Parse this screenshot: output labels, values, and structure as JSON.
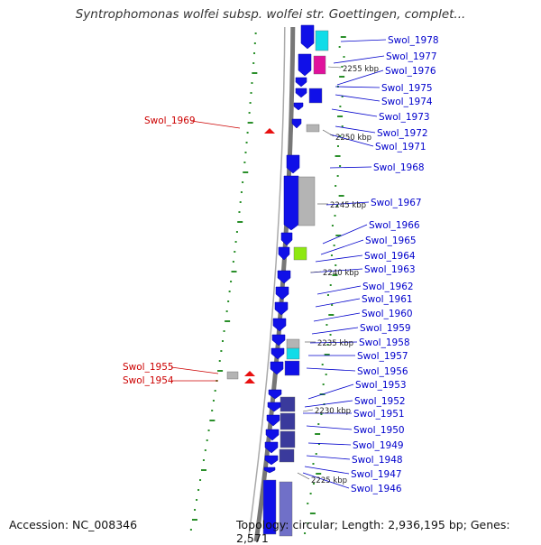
{
  "title": "Syntrophomonas wolfei subsp. wolfei str. Goettingen, complet...",
  "footer": {
    "accession": "Accession: NC_008346",
    "info": "Topology: circular; Length: 2,936,195 bp; Genes: 2,571"
  },
  "colors": {
    "gene_blue": "#1010e8",
    "gene_cyan": "#11dce8",
    "gene_magenta": "#e0119c",
    "gene_gray": "#b4b4b4",
    "gene_lime": "#8ee811",
    "gene_darkslate": "#3a3a9c",
    "gene_slate": "#7070c8",
    "highlight_red": "#e81010",
    "label_blue": "#0000cc",
    "label_red": "#cc0000",
    "dot_green": "#2a8f2a",
    "backbone": "#888888"
  },
  "scale_labels": [
    "2255 kbp",
    "2250 kbp",
    "2245 kbp",
    "2240 kbp",
    "2235 kbp",
    "2230 kbp",
    "2225 kbp"
  ],
  "gene_labels_right": [
    "Swol_1978",
    "Swol_1977",
    "Swol_1976",
    "Swol_1975",
    "Swol_1974",
    "Swol_1973",
    "Swol_1972",
    "Swol_1971",
    "Swol_1968",
    "Swol_1967",
    "Swol_1966",
    "Swol_1965",
    "Swol_1964",
    "Swol_1963",
    "Swol_1962",
    "Swol_1961",
    "Swol_1960",
    "Swol_1959",
    "Swol_1958",
    "Swol_1957",
    "Swol_1956",
    "Swol_1953",
    "Swol_1952",
    "Swol_1951",
    "Swol_1950",
    "Swol_1949",
    "Swol_1948",
    "Swol_1947",
    "Swol_1946"
  ],
  "gene_labels_left": [
    "Swol_1969",
    "Swol_1955",
    "Swol_1954"
  ]
}
